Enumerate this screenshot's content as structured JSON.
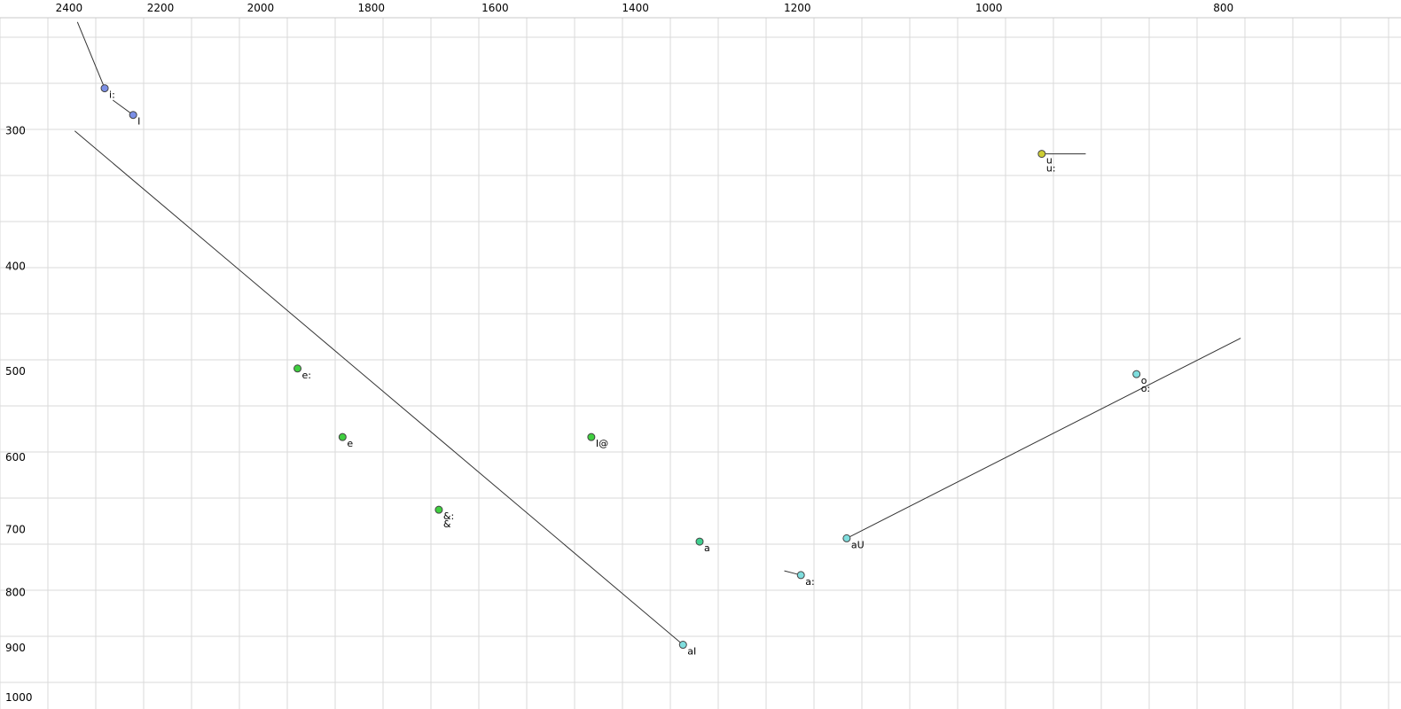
{
  "chart_data": {
    "type": "scatter",
    "title": "",
    "x_axis": {
      "label": "",
      "ticks": [
        2400,
        2200,
        2000,
        1800,
        1600,
        1400,
        1200,
        1000,
        800
      ],
      "scale": "log",
      "reversed": true,
      "position": "top",
      "range": [
        2566,
        675
      ]
    },
    "y_axis": {
      "label": "",
      "ticks": [
        300,
        400,
        500,
        600,
        700,
        800,
        900,
        1000
      ],
      "scale": "log",
      "reversed": false,
      "position": "left",
      "range": [
        236,
        1025
      ]
    },
    "grid": true,
    "layout": {
      "background": "#ffffff",
      "grid_color": "#dadada",
      "top_border_color": "#c8c8c8",
      "axis_text_color": "#000000",
      "line_color": "#333333",
      "point_stroke_color": "#444444"
    },
    "points": [
      {
        "id": "i-long",
        "label": "i:",
        "f2": 2320,
        "f1": 274,
        "color": "#7b8fe6"
      },
      {
        "id": "cap-i",
        "label": "I",
        "f2": 2258,
        "f1": 290,
        "color": "#7b8fe6"
      },
      {
        "id": "u",
        "label": "u",
        "label2": "u:",
        "f2": 951,
        "f1": 315,
        "color": "#cdcd33"
      },
      {
        "id": "e-long",
        "label": "e:",
        "f2": 1931,
        "f1": 497,
        "color": "#3fcf3f"
      },
      {
        "id": "o",
        "label": "o",
        "label2": "o:",
        "f2": 869,
        "f1": 503,
        "color": "#7fdede"
      },
      {
        "id": "e",
        "label": "e",
        "f2": 1850,
        "f1": 575,
        "color": "#3fcf3f"
      },
      {
        "id": "i-schwa",
        "label": "I@",
        "f2": 1460,
        "f1": 575,
        "color": "#3fcf3f"
      },
      {
        "id": "ash-long",
        "label": "&:",
        "label2": "&",
        "f2": 1688,
        "f1": 671,
        "color": "#3fcf3f"
      },
      {
        "id": "a",
        "label": "a",
        "f2": 1317,
        "f1": 718,
        "color": "#3fcf8f"
      },
      {
        "id": "au",
        "label": "aU",
        "f2": 1145,
        "f1": 713,
        "color": "#7fdede"
      },
      {
        "id": "a-long",
        "label": "a:",
        "f2": 1196,
        "f1": 771,
        "color": "#7fdede"
      },
      {
        "id": "ai",
        "label": "aI",
        "f2": 1338,
        "f1": 894,
        "color": "#7fdede"
      }
    ],
    "segments": [
      {
        "name": "ai-glide",
        "from_f2": 1338,
        "from_f1": 894,
        "to_f2": 2387,
        "to_f1": 300
      },
      {
        "name": "au-glide",
        "from_f2": 1145,
        "from_f1": 713,
        "to_f2": 787,
        "to_f1": 466
      },
      {
        "name": "i-long-onset",
        "from_f2": 2381,
        "from_f1": 238,
        "to_f2": 2320,
        "to_f1": 274
      },
      {
        "name": "i-to-cap-i",
        "from_f2": 2302,
        "from_f1": 281,
        "to_f2": 2258,
        "to_f1": 290
      },
      {
        "name": "u-tail",
        "from_f2": 951,
        "from_f1": 315,
        "to_f2": 912,
        "to_f1": 315
      },
      {
        "name": "a-long-tail",
        "from_f2": 1215,
        "from_f1": 764,
        "to_f2": 1196,
        "to_f1": 771
      }
    ]
  }
}
